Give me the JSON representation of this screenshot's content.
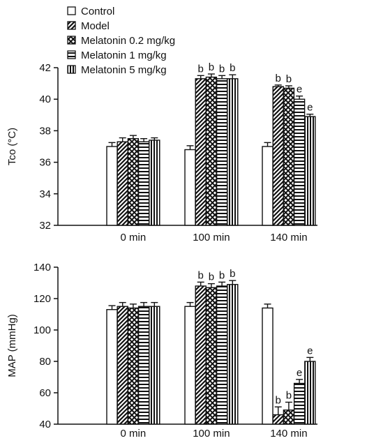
{
  "chart_data": [
    {
      "type": "bar",
      "ylabel": "Tco (°C)",
      "ylim": [
        32,
        42
      ],
      "yticks": [
        32,
        34,
        36,
        38,
        40,
        42
      ],
      "categories": [
        "0 min",
        "100 min",
        "140 min"
      ],
      "series": [
        {
          "name": "Control",
          "pattern": "none",
          "values": [
            37.0,
            36.8,
            37.0
          ],
          "errors": [
            0.25,
            0.25,
            0.25
          ],
          "labels": [
            "",
            "",
            ""
          ]
        },
        {
          "name": "Model",
          "pattern": "diagonal",
          "values": [
            37.3,
            41.3,
            40.8
          ],
          "errors": [
            0.25,
            0.2,
            0.1
          ],
          "labels": [
            "",
            "b",
            "b"
          ]
        },
        {
          "name": "Melatonin 0.2 mg/kg",
          "pattern": "crosshatch",
          "values": [
            37.5,
            41.4,
            40.7
          ],
          "errors": [
            0.2,
            0.2,
            0.15
          ],
          "labels": [
            "",
            "b",
            "b"
          ]
        },
        {
          "name": "Melatonin 1 mg/kg",
          "pattern": "horizontal",
          "values": [
            37.3,
            41.3,
            40.0
          ],
          "errors": [
            0.2,
            0.2,
            0.2
          ],
          "labels": [
            "",
            "b",
            "e"
          ]
        },
        {
          "name": "Melatonin 5 mg/kg",
          "pattern": "vertical",
          "values": [
            37.4,
            41.3,
            38.9
          ],
          "errors": [
            0.15,
            0.25,
            0.15
          ],
          "labels": [
            "",
            "b",
            "e"
          ]
        }
      ]
    },
    {
      "type": "bar",
      "ylabel": "MAP (mmHg)",
      "ylim": [
        40,
        140
      ],
      "yticks": [
        40,
        60,
        80,
        100,
        120,
        140
      ],
      "categories": [
        "0 min",
        "100 min",
        "140 min"
      ],
      "series": [
        {
          "name": "Control",
          "pattern": "none",
          "values": [
            113,
            115,
            114
          ],
          "errors": [
            2.5,
            2.5,
            2.5
          ],
          "labels": [
            "",
            "",
            ""
          ]
        },
        {
          "name": "Model",
          "pattern": "diagonal",
          "values": [
            115,
            128,
            46
          ],
          "errors": [
            2.5,
            2.5,
            5
          ],
          "labels": [
            "",
            "b",
            "b"
          ]
        },
        {
          "name": "Melatonin 0.2 mg/kg",
          "pattern": "crosshatch",
          "values": [
            114,
            127,
            49
          ],
          "errors": [
            2.5,
            2.5,
            5
          ],
          "labels": [
            "",
            "b",
            "b"
          ]
        },
        {
          "name": "Melatonin 1 mg/kg",
          "pattern": "horizontal",
          "values": [
            115,
            128,
            66
          ],
          "errors": [
            2.5,
            2.5,
            2.5
          ],
          "labels": [
            "",
            "b",
            "e"
          ]
        },
        {
          "name": "Melatonin 5 mg/kg",
          "pattern": "vertical",
          "values": [
            115,
            129,
            80
          ],
          "errors": [
            2.5,
            2.5,
            2.5
          ],
          "labels": [
            "",
            "b",
            "e"
          ]
        }
      ]
    }
  ],
  "legend": {
    "placement": "top-left",
    "items": [
      {
        "label": "Control",
        "pattern": "none"
      },
      {
        "label": "Model",
        "pattern": "diagonal"
      },
      {
        "label": "Melatonin 0.2 mg/kg",
        "pattern": "crosshatch"
      },
      {
        "label": "Melatonin 1 mg/kg",
        "pattern": "horizontal"
      },
      {
        "label": "Melatonin 5 mg/kg",
        "pattern": "vertical"
      }
    ]
  }
}
